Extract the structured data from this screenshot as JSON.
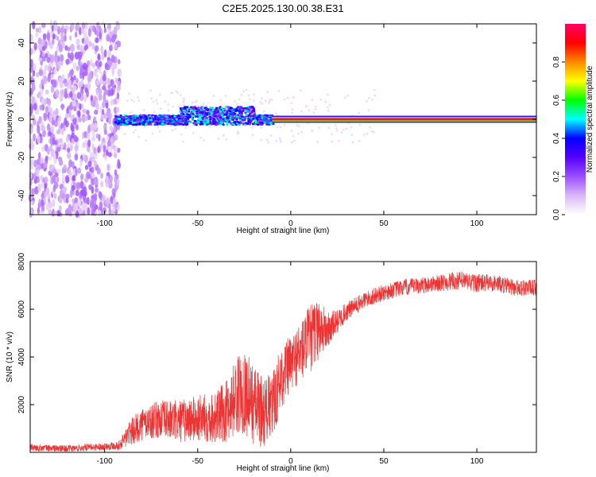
{
  "figure_title": "C2E5.2025.130.00.38.E31",
  "chart_data": [
    {
      "type": "heatmap",
      "title": "C2E5.2025.130.00.38.E31",
      "xlabel": "Height of straight line (km)",
      "ylabel": "Frequency (Hz)",
      "xlim": [
        -140,
        132
      ],
      "ylim": [
        -50,
        50
      ],
      "x_ticks": [
        -100,
        -50,
        0,
        50,
        100
      ],
      "y_ticks": [
        -40,
        -20,
        0,
        20,
        40
      ],
      "grid": false,
      "colorbar": {
        "label": "Normalized spectral amplitude",
        "range": [
          0,
          1
        ],
        "ticks": [
          0.0,
          0.2,
          0.4,
          0.6,
          0.8
        ],
        "colormap": [
          "#ffffff",
          "#d9b8f5",
          "#9b4dff",
          "#5500ff",
          "#0000ff",
          "#00ffff",
          "#00ff00",
          "#ffff00",
          "#ff8800",
          "#ff0000",
          "#ff0066"
        ]
      },
      "regions": [
        {
          "x": [
            -140,
            -92
          ],
          "freq_spread": [
            -50,
            50
          ],
          "amplitude": [
            0.05,
            0.2
          ]
        },
        {
          "x": [
            -95,
            -10
          ],
          "freq_spread": [
            -3,
            5
          ],
          "amplitude": [
            0.2,
            0.55
          ]
        },
        {
          "x": [
            -10,
            132
          ],
          "freq_spread": [
            -1,
            1
          ],
          "amplitude": [
            0.85,
            1.0
          ]
        }
      ]
    },
    {
      "type": "line",
      "xlabel": "Height of straight line (km)",
      "ylabel": "SNR (10 * v/v)",
      "xlim": [
        -140,
        132
      ],
      "ylim": [
        0,
        8000
      ],
      "x_ticks": [
        -100,
        -50,
        0,
        50,
        100
      ],
      "y_ticks": [
        2000,
        4000,
        6000,
        8000
      ],
      "grid": false,
      "series": [
        {
          "color": "#ee3333",
          "x": [
            -140,
            -120,
            -100,
            -92,
            -88,
            -80,
            -70,
            -60,
            -50,
            -40,
            -35,
            -30,
            -25,
            -20,
            -15,
            -10,
            -5,
            0,
            5,
            10,
            15,
            20,
            25,
            30,
            40,
            50,
            60,
            70,
            80,
            90,
            100,
            110,
            120,
            132
          ],
          "y": [
            200,
            150,
            250,
            300,
            700,
            1200,
            1400,
            1300,
            1400,
            1500,
            1700,
            2300,
            2600,
            2000,
            1700,
            1900,
            3200,
            3700,
            4200,
            4700,
            5200,
            5100,
            5500,
            5900,
            6400,
            6700,
            6900,
            7000,
            7100,
            7200,
            7100,
            7100,
            6900,
            6900
          ],
          "spread": [
            150,
            150,
            150,
            200,
            500,
            700,
            800,
            900,
            1000,
            1100,
            1300,
            1600,
            1800,
            1700,
            1500,
            1400,
            1400,
            1200,
            1300,
            1500,
            1300,
            800,
            500,
            400,
            350,
            350,
            350,
            350,
            350,
            400,
            400,
            350,
            350,
            350
          ]
        }
      ]
    }
  ]
}
